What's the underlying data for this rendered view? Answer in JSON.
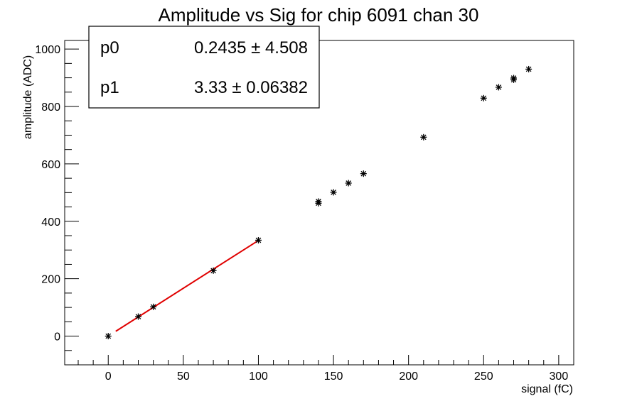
{
  "chart_data": {
    "type": "scatter",
    "title": "Amplitude vs Sig for chip 6091 chan 30",
    "xlabel": "signal (fC)",
    "ylabel": "amplitude (ADC)",
    "xlim": [
      -29,
      310
    ],
    "ylim": [
      -100,
      1030
    ],
    "x_ticks": [
      0,
      50,
      100,
      150,
      200,
      250,
      300
    ],
    "y_ticks": [
      0,
      200,
      400,
      600,
      800,
      1000
    ],
    "grid": false,
    "marker": "asterisk",
    "marker_color": "#000000",
    "points": [
      {
        "x": 0,
        "y": 0
      },
      {
        "x": 20,
        "y": 68
      },
      {
        "x": 30,
        "y": 102
      },
      {
        "x": 70,
        "y": 228
      },
      {
        "x": 100,
        "y": 334
      },
      {
        "x": 140,
        "y": 463
      },
      {
        "x": 140,
        "y": 469
      },
      {
        "x": 150,
        "y": 501
      },
      {
        "x": 160,
        "y": 533
      },
      {
        "x": 170,
        "y": 566
      },
      {
        "x": 210,
        "y": 693
      },
      {
        "x": 250,
        "y": 829
      },
      {
        "x": 260,
        "y": 867
      },
      {
        "x": 270,
        "y": 893
      },
      {
        "x": 270,
        "y": 899
      },
      {
        "x": 280,
        "y": 930
      }
    ],
    "fit": {
      "color": "#e00000",
      "x_range": [
        5,
        100
      ],
      "params": [
        {
          "name": "p0",
          "value": "0.2435",
          "error": "4.508",
          "num": 0.2435
        },
        {
          "name": "p1",
          "value": "3.33",
          "error": "0.06382",
          "num": 3.33
        }
      ]
    },
    "stats_box_position": "top-left"
  }
}
